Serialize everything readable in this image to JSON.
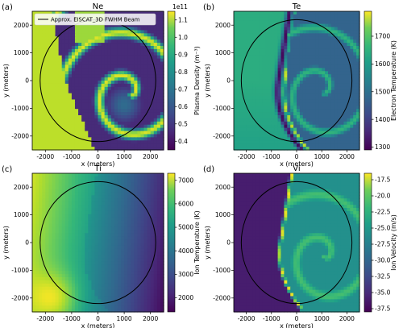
{
  "chart_data": [
    {
      "type": "heatmap",
      "panel_label": "(a)",
      "title": "Ne",
      "xlabel": "x (meters)",
      "ylabel": "y (meters)",
      "xlim": [
        -2500,
        2500
      ],
      "ylim": [
        -2500,
        2500
      ],
      "xticks": [
        "-2000",
        "-1000",
        "0",
        "1000",
        "2000"
      ],
      "yticks": [
        "2000",
        "1000",
        "0",
        "-1000",
        "-2000"
      ],
      "legend": "Approx. EISCAT_3D FWHM Beam",
      "legend_placement": "top-left",
      "beam_radius_m": 2200,
      "field": "ne",
      "colorbar": {
        "label": "Plasma Density (m⁻³)",
        "offset_text": "1e11",
        "range": [
          0.35,
          1.15
        ],
        "ticks": [
          "1.1",
          "1.0",
          "0.9",
          "0.8",
          "0.7",
          "0.6",
          "0.5",
          "0.4"
        ]
      }
    },
    {
      "type": "heatmap",
      "panel_label": "(b)",
      "title": "Te",
      "xlabel": "x (meters)",
      "ylabel": "y (meters)",
      "xlim": [
        -2500,
        2500
      ],
      "ylim": [
        -2500,
        2500
      ],
      "xticks": [
        "-2000",
        "-1000",
        "0",
        "1000",
        "2000"
      ],
      "yticks": [
        "2000",
        "1000",
        "0",
        "-1000",
        "-2000"
      ],
      "beam_radius_m": 2200,
      "field": "te",
      "colorbar": {
        "label": "Electron Temperature (K)",
        "range": [
          1290,
          1790
        ],
        "ticks": [
          "1700",
          "1600",
          "1500",
          "1400",
          "1300"
        ]
      }
    },
    {
      "type": "heatmap",
      "panel_label": "(c)",
      "title": "Ti",
      "xlabel": "x (meters)",
      "ylabel": "y (meters)",
      "xlim": [
        -2500,
        2500
      ],
      "ylim": [
        -2500,
        2500
      ],
      "xticks": [
        "-2000",
        "-1000",
        "0",
        "1000",
        "2000"
      ],
      "yticks": [
        "2000",
        "1000",
        "0",
        "-1000",
        "-2000"
      ],
      "beam_radius_m": 2200,
      "field": "ti",
      "colorbar": {
        "label": "Ion Temperature (K)",
        "range": [
          1400,
          7300
        ],
        "ticks": [
          "7000",
          "6000",
          "5000",
          "4000",
          "3000",
          "2000"
        ]
      }
    },
    {
      "type": "heatmap",
      "panel_label": "(d)",
      "title": "Vi",
      "xlabel": "x (meters)",
      "ylabel": "y (meters)",
      "xlim": [
        -2500,
        2500
      ],
      "ylim": [
        -2500,
        2500
      ],
      "xticks": [
        "-2000",
        "-1000",
        "0",
        "1000",
        "2000"
      ],
      "yticks": [
        "2000",
        "1000",
        "0",
        "-1000",
        "-2000"
      ],
      "beam_radius_m": 2200,
      "field": "vi",
      "colorbar": {
        "label": "Ion Velocity (m/s)",
        "range": [
          -38,
          -16.5
        ],
        "ticks": [
          "-17.5",
          "-20.0",
          "-22.5",
          "-25.0",
          "-27.5",
          "-30.0",
          "-32.5",
          "-35.0",
          "-37.5"
        ]
      }
    }
  ]
}
